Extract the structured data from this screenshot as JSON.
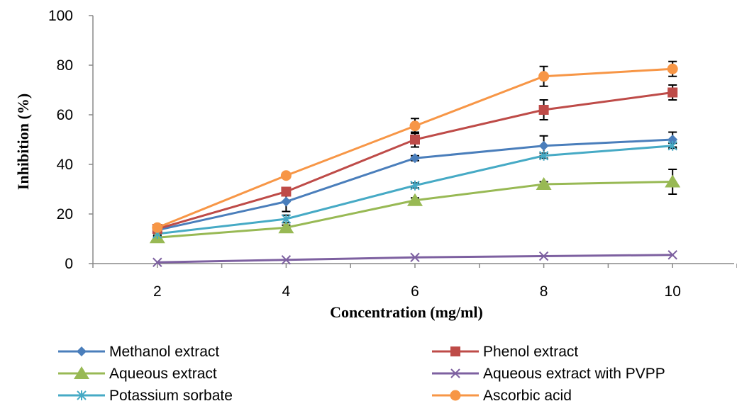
{
  "chart_data": {
    "type": "line",
    "title": "",
    "xlabel": "Concentration (mg/ml)",
    "ylabel": "Inhibition (%)",
    "x": [
      2,
      4,
      6,
      8,
      10
    ],
    "x_tick_labels": [
      "2",
      "4",
      "6",
      "8",
      "10"
    ],
    "y_tick_labels": [
      "0",
      "20",
      "40",
      "60",
      "80",
      "100"
    ],
    "ylim": [
      0,
      100
    ],
    "grid": false,
    "error_bars": true,
    "legend_position": "bottom",
    "series": [
      {
        "name": "Methanol extract",
        "color": "#4a7ebb",
        "marker": "diamond",
        "values": [
          13.5,
          25,
          42.5,
          47.5,
          50
        ],
        "errors": [
          1,
          4,
          1,
          4,
          3
        ]
      },
      {
        "name": "Phenol extract",
        "color": "#be4b48",
        "marker": "square",
        "values": [
          14,
          29,
          50,
          62,
          69
        ],
        "errors": [
          1,
          1,
          3,
          4,
          3
        ]
      },
      {
        "name": "Aqueous extract",
        "color": "#98b954",
        "marker": "triangle",
        "values": [
          10.5,
          14.5,
          25.5,
          32,
          33
        ],
        "errors": [
          0.5,
          1,
          1,
          1,
          5
        ]
      },
      {
        "name": "Aqueous extract with PVPP",
        "color": "#7d60a0",
        "marker": "x",
        "values": [
          0.5,
          1.5,
          2.5,
          3,
          3.5
        ],
        "errors": [
          0,
          0,
          0,
          0,
          0
        ]
      },
      {
        "name": "Potassium sorbate",
        "color": "#46aac5",
        "marker": "asterisk",
        "values": [
          12,
          18,
          31.5,
          43.5,
          47.5
        ],
        "errors": [
          0.5,
          1.5,
          1,
          1,
          1
        ]
      },
      {
        "name": "Ascorbic acid",
        "color": "#f79646",
        "marker": "circle",
        "values": [
          14.5,
          35.5,
          55.5,
          75.5,
          78.5
        ],
        "errors": [
          1,
          1,
          3,
          4,
          3
        ]
      }
    ]
  }
}
